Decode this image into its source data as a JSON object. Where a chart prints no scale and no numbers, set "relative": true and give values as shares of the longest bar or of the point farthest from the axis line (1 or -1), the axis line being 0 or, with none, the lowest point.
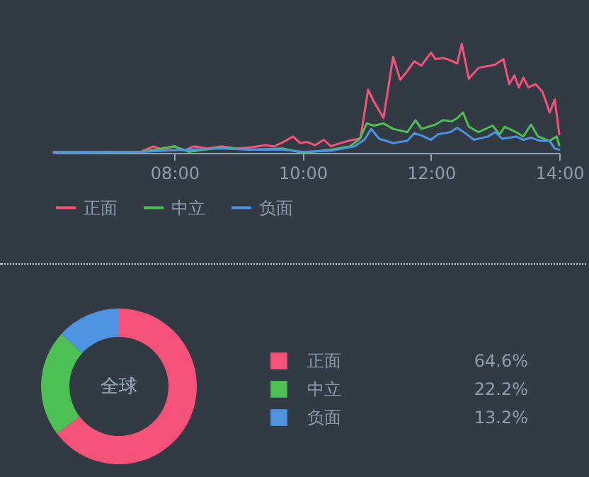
{
  "chart_data": [
    {
      "type": "line",
      "relative": true,
      "xlim": [
        6.12,
        14
      ],
      "xticks": [
        {
          "value": 8,
          "label": "08:00"
        },
        {
          "value": 10,
          "label": "10:00"
        },
        {
          "value": 12,
          "label": "12:00"
        },
        {
          "value": 14,
          "label": "14:00"
        }
      ],
      "legend": "bottom",
      "marker": "none",
      "line_style": "solid",
      "series": [
        {
          "name": "正面",
          "color": "#f5527a",
          "x": [
            6.12,
            7.48,
            7.67,
            7.81,
            8.0,
            8.15,
            8.3,
            8.52,
            8.74,
            8.96,
            9.19,
            9.41,
            9.56,
            9.7,
            9.85,
            9.96,
            10.07,
            10.19,
            10.33,
            10.44,
            10.59,
            10.78,
            10.9,
            11.02,
            11.11,
            11.26,
            11.41,
            11.52,
            11.63,
            11.74,
            11.85,
            12.0,
            12.07,
            12.19,
            12.3,
            12.41,
            12.48,
            12.59,
            12.74,
            12.93,
            13.0,
            13.13,
            13.22,
            13.3,
            13.37,
            13.44,
            13.52,
            13.63,
            13.74,
            13.85,
            13.93,
            14.0
          ],
          "values": [
            0.01,
            0.01,
            0.06,
            0.03,
            0.06,
            0.02,
            0.06,
            0.04,
            0.06,
            0.04,
            0.05,
            0.07,
            0.06,
            0.1,
            0.15,
            0.09,
            0.1,
            0.07,
            0.12,
            0.06,
            0.09,
            0.12,
            0.13,
            0.58,
            0.47,
            0.32,
            0.88,
            0.67,
            0.75,
            0.84,
            0.8,
            0.92,
            0.86,
            0.87,
            0.85,
            0.82,
            1.0,
            0.68,
            0.78,
            0.8,
            0.81,
            0.86,
            0.63,
            0.71,
            0.6,
            0.69,
            0.6,
            0.63,
            0.56,
            0.37,
            0.49,
            0.17
          ]
        },
        {
          "name": "中立",
          "color": "#4cc052",
          "x": [
            6.12,
            7.48,
            8.0,
            8.22,
            8.74,
            9.19,
            9.7,
            10.0,
            10.44,
            10.74,
            10.89,
            11.0,
            11.11,
            11.26,
            11.41,
            11.63,
            11.76,
            11.85,
            12.07,
            12.19,
            12.33,
            12.41,
            12.5,
            12.59,
            12.74,
            12.96,
            13.07,
            13.15,
            13.33,
            13.44,
            13.56,
            13.67,
            13.85,
            13.96,
            14.0
          ],
          "values": [
            0.0,
            0.01,
            0.06,
            0.01,
            0.05,
            0.03,
            0.04,
            0.0,
            0.03,
            0.06,
            0.13,
            0.27,
            0.25,
            0.27,
            0.22,
            0.19,
            0.3,
            0.22,
            0.26,
            0.3,
            0.29,
            0.32,
            0.37,
            0.24,
            0.19,
            0.25,
            0.17,
            0.24,
            0.19,
            0.15,
            0.26,
            0.15,
            0.11,
            0.15,
            0.07
          ]
        },
        {
          "name": "负面",
          "color": "#4e93e0",
          "x": [
            6.12,
            7.48,
            8.22,
            8.74,
            9.19,
            9.7,
            10.0,
            10.44,
            10.81,
            10.96,
            11.07,
            11.19,
            11.41,
            11.63,
            11.74,
            11.85,
            12.0,
            12.11,
            12.3,
            12.41,
            12.56,
            12.67,
            12.89,
            13.0,
            13.11,
            13.33,
            13.44,
            13.56,
            13.7,
            13.85,
            13.93,
            14.0
          ],
          "values": [
            0.0,
            0.01,
            0.03,
            0.04,
            0.03,
            0.03,
            0.01,
            0.02,
            0.06,
            0.12,
            0.22,
            0.13,
            0.09,
            0.11,
            0.18,
            0.16,
            0.12,
            0.17,
            0.19,
            0.23,
            0.17,
            0.12,
            0.15,
            0.19,
            0.13,
            0.15,
            0.12,
            0.14,
            0.11,
            0.11,
            0.04,
            0.03
          ]
        }
      ]
    },
    {
      "type": "donut",
      "categories": [
        "正面",
        "中立",
        "负面"
      ],
      "values": [
        64.6,
        22.2,
        13.2
      ],
      "colors": [
        "#f5527a",
        "#4cc052",
        "#4e93e0"
      ],
      "value_labels": [
        "64.6%",
        "22.2%",
        "13.2%"
      ],
      "legend": "right",
      "annotations": [
        "全球"
      ]
    }
  ]
}
